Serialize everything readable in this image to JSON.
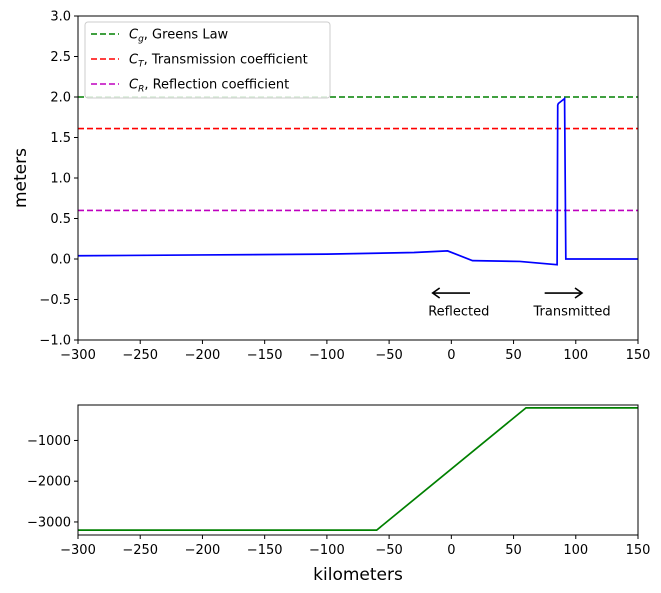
{
  "chart_data": [
    {
      "type": "line",
      "ylabel": "meters",
      "xlabel": "",
      "xlim": [
        -300,
        150
      ],
      "ylim": [
        -1.0,
        3.0
      ],
      "xticks": [
        "−300",
        "−250",
        "−200",
        "−150",
        "−100",
        "−50",
        "0",
        "50",
        "100",
        "150"
      ],
      "xtick_values": [
        -300,
        -250,
        -200,
        -150,
        -100,
        -50,
        0,
        50,
        100,
        150
      ],
      "yticks": [
        "−1.0",
        "−0.5",
        "0.0",
        "0.5",
        "1.0",
        "1.5",
        "2.0",
        "2.5",
        "3.0"
      ],
      "ytick_values": [
        -1.0,
        -0.5,
        0.0,
        0.5,
        1.0,
        1.5,
        2.0,
        2.5,
        3.0
      ],
      "legend_position": "top-left",
      "series": [
        {
          "name_prefix": "C",
          "name_sub": "g",
          "name_suffix": ", Greens Law",
          "style": "dashed",
          "color": "#008000",
          "value": 2.0
        },
        {
          "name_prefix": "C",
          "name_sub": "T",
          "name_suffix": ", Transmission coefficient",
          "style": "dashed",
          "color": "#ff0000",
          "value": 1.61
        },
        {
          "name_prefix": "C",
          "name_sub": "R",
          "name_suffix": ", Reflection coefficient",
          "style": "dashed",
          "color": "#bf00bf",
          "value": 0.6
        }
      ],
      "wave": {
        "color": "#0000ff",
        "x": [
          -300,
          -200,
          -100,
          -30,
          -3,
          17,
          55,
          85,
          85.5,
          86,
          91,
          92,
          150
        ],
        "y": [
          0.04,
          0.05,
          0.06,
          0.08,
          0.1,
          -0.02,
          -0.03,
          -0.07,
          1.9,
          1.92,
          1.98,
          0.0,
          0.0
        ]
      },
      "annotations": [
        {
          "text": "Reflected",
          "x": 6,
          "y": -0.64,
          "arrow": "left",
          "arrow_from": 15,
          "arrow_to": -15,
          "arrow_y": -0.42
        },
        {
          "text": "Transmitted",
          "x": 97,
          "y": -0.64,
          "arrow": "right",
          "arrow_from": 75,
          "arrow_to": 105,
          "arrow_y": -0.42
        }
      ]
    },
    {
      "type": "line",
      "xlabel": "kilometers",
      "ylabel": "",
      "xlim": [
        -300,
        150
      ],
      "ylim": [
        -3320,
        -130
      ],
      "xticks": [
        "−300",
        "−250",
        "−200",
        "−150",
        "−100",
        "−50",
        "0",
        "50",
        "100",
        "150"
      ],
      "xtick_values": [
        -300,
        -250,
        -200,
        -150,
        -100,
        -50,
        0,
        50,
        100,
        150
      ],
      "yticks": [
        "−3000",
        "−2000",
        "−1000"
      ],
      "ytick_values": [
        -3000,
        -2000,
        -1000
      ],
      "series": [
        {
          "color": "#008000",
          "x": [
            -300,
            -60,
            60,
            150
          ],
          "y": [
            -3200,
            -3200,
            -200,
            -200
          ]
        }
      ]
    }
  ]
}
